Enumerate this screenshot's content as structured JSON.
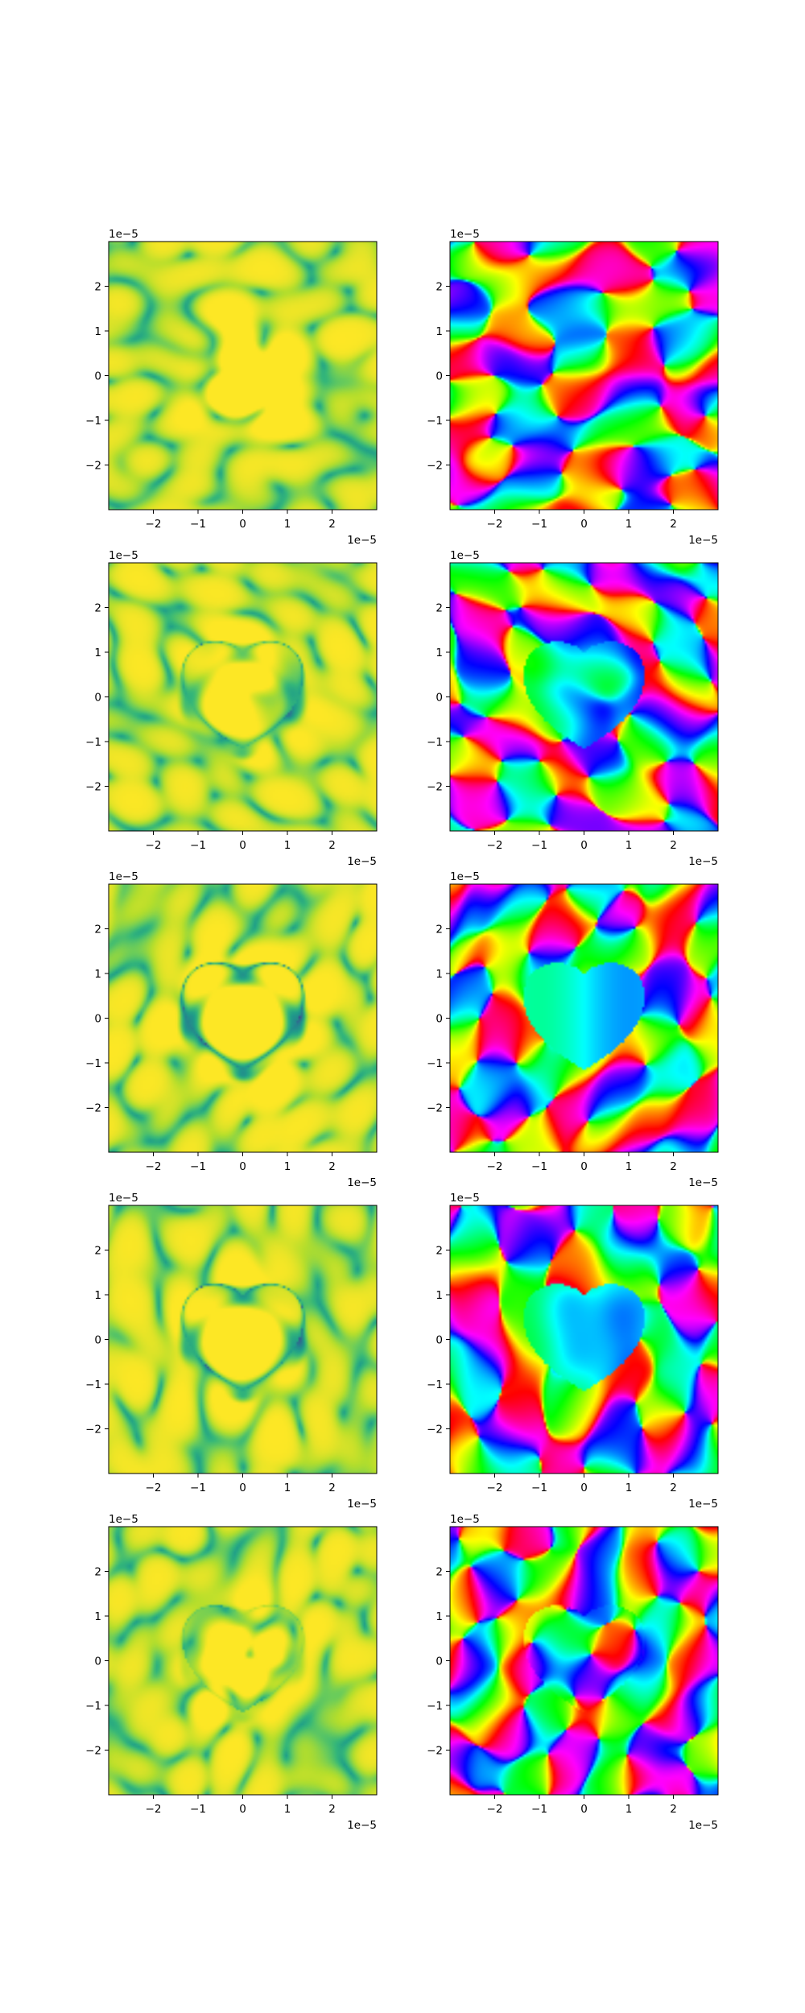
{
  "figure": {
    "background": "#ffffff"
  },
  "chart_data": [
    {
      "type": "heatmap",
      "quantity": "amplitude",
      "colormap": "viridis",
      "xlim": [
        -3e-05,
        3e-05
      ],
      "ylim": [
        -3e-05,
        3e-05
      ],
      "xticks": [
        -2,
        -1,
        0,
        1,
        2
      ],
      "yticks": [
        2,
        1,
        0,
        -1,
        -2
      ],
      "xtick_labels": [
        "−2",
        "−1",
        "0",
        "1",
        "2"
      ],
      "ytick_labels": [
        "2",
        "1",
        "0",
        "−1",
        "−2"
      ],
      "x_offset_text": "1e−5",
      "y_offset_text": "1e−5",
      "grid": false,
      "row": 1,
      "heart_stage": 0.0,
      "seed": 11
    },
    {
      "type": "heatmap",
      "quantity": "phase",
      "colormap": "hsv",
      "xlim": [
        -3e-05,
        3e-05
      ],
      "ylim": [
        -3e-05,
        3e-05
      ],
      "xticks": [
        -2,
        -1,
        0,
        1,
        2
      ],
      "yticks": [
        2,
        1,
        0,
        -1,
        -2
      ],
      "xtick_labels": [
        "−2",
        "−1",
        "0",
        "1",
        "2"
      ],
      "ytick_labels": [
        "2",
        "1",
        "0",
        "−1",
        "−2"
      ],
      "x_offset_text": "1e−5",
      "y_offset_text": "1e−5",
      "grid": false,
      "row": 1,
      "heart_stage": 0.0,
      "seed": 11
    },
    {
      "type": "heatmap",
      "quantity": "amplitude",
      "colormap": "viridis",
      "xlim": [
        -3e-05,
        3e-05
      ],
      "ylim": [
        -3e-05,
        3e-05
      ],
      "xticks": [
        -2,
        -1,
        0,
        1,
        2
      ],
      "yticks": [
        2,
        1,
        0,
        -1,
        -2
      ],
      "xtick_labels": [
        "−2",
        "−1",
        "0",
        "1",
        "2"
      ],
      "ytick_labels": [
        "2",
        "1",
        "0",
        "−1",
        "−2"
      ],
      "x_offset_text": "1e−5",
      "y_offset_text": "1e−5",
      "grid": false,
      "row": 2,
      "heart_stage": 0.6,
      "seed": 23
    },
    {
      "type": "heatmap",
      "quantity": "phase",
      "colormap": "hsv",
      "xlim": [
        -3e-05,
        3e-05
      ],
      "ylim": [
        -3e-05,
        3e-05
      ],
      "xticks": [
        -2,
        -1,
        0,
        1,
        2
      ],
      "yticks": [
        2,
        1,
        0,
        -1,
        -2
      ],
      "xtick_labels": [
        "−2",
        "−1",
        "0",
        "1",
        "2"
      ],
      "ytick_labels": [
        "2",
        "1",
        "0",
        "−1",
        "−2"
      ],
      "x_offset_text": "1e−5",
      "y_offset_text": "1e−5",
      "grid": false,
      "row": 2,
      "heart_stage": 0.6,
      "seed": 23
    },
    {
      "type": "heatmap",
      "quantity": "amplitude",
      "colormap": "viridis",
      "xlim": [
        -3e-05,
        3e-05
      ],
      "ylim": [
        -3e-05,
        3e-05
      ],
      "xticks": [
        -2,
        -1,
        0,
        1,
        2
      ],
      "yticks": [
        2,
        1,
        0,
        -1,
        -2
      ],
      "xtick_labels": [
        "−2",
        "−1",
        "0",
        "1",
        "2"
      ],
      "ytick_labels": [
        "2",
        "1",
        "0",
        "−1",
        "−2"
      ],
      "x_offset_text": "1e−5",
      "y_offset_text": "1e−5",
      "grid": false,
      "row": 3,
      "heart_stage": 1.0,
      "seed": 37
    },
    {
      "type": "heatmap",
      "quantity": "phase",
      "colormap": "hsv",
      "xlim": [
        -3e-05,
        3e-05
      ],
      "ylim": [
        -3e-05,
        3e-05
      ],
      "xticks": [
        -2,
        -1,
        0,
        1,
        2
      ],
      "yticks": [
        2,
        1,
        0,
        -1,
        -2
      ],
      "xtick_labels": [
        "−2",
        "−1",
        "0",
        "1",
        "2"
      ],
      "ytick_labels": [
        "2",
        "1",
        "0",
        "−1",
        "−2"
      ],
      "x_offset_text": "1e−5",
      "y_offset_text": "1e−5",
      "grid": false,
      "row": 3,
      "heart_stage": 1.0,
      "seed": 37
    },
    {
      "type": "heatmap",
      "quantity": "amplitude",
      "colormap": "viridis",
      "xlim": [
        -3e-05,
        3e-05
      ],
      "ylim": [
        -3e-05,
        3e-05
      ],
      "xticks": [
        -2,
        -1,
        0,
        1,
        2
      ],
      "yticks": [
        2,
        1,
        0,
        -1,
        -2
      ],
      "xtick_labels": [
        "−2",
        "−1",
        "0",
        "1",
        "2"
      ],
      "ytick_labels": [
        "2",
        "1",
        "0",
        "−1",
        "−2"
      ],
      "x_offset_text": "1e−5",
      "y_offset_text": "1e−5",
      "grid": false,
      "row": 4,
      "heart_stage": 0.75,
      "seed": 53
    },
    {
      "type": "heatmap",
      "quantity": "phase",
      "colormap": "hsv",
      "xlim": [
        -3e-05,
        3e-05
      ],
      "ylim": [
        -3e-05,
        3e-05
      ],
      "xticks": [
        -2,
        -1,
        0,
        1,
        2
      ],
      "yticks": [
        2,
        1,
        0,
        -1,
        -2
      ],
      "xtick_labels": [
        "−2",
        "−1",
        "0",
        "1",
        "2"
      ],
      "ytick_labels": [
        "2",
        "1",
        "0",
        "−1",
        "−2"
      ],
      "x_offset_text": "1e−5",
      "y_offset_text": "1e−5",
      "grid": false,
      "row": 4,
      "heart_stage": 0.75,
      "seed": 53
    },
    {
      "type": "heatmap",
      "quantity": "amplitude",
      "colormap": "viridis",
      "xlim": [
        -3e-05,
        3e-05
      ],
      "ylim": [
        -3e-05,
        3e-05
      ],
      "xticks": [
        -2,
        -1,
        0,
        1,
        2
      ],
      "yticks": [
        2,
        1,
        0,
        -1,
        -2
      ],
      "xtick_labels": [
        "−2",
        "−1",
        "0",
        "1",
        "2"
      ],
      "ytick_labels": [
        "2",
        "1",
        "0",
        "−1",
        "−2"
      ],
      "x_offset_text": "1e−5",
      "y_offset_text": "1e−5",
      "grid": false,
      "row": 5,
      "heart_stage": 0.25,
      "seed": 71
    },
    {
      "type": "heatmap",
      "quantity": "phase",
      "colormap": "hsv",
      "xlim": [
        -3e-05,
        3e-05
      ],
      "ylim": [
        -3e-05,
        3e-05
      ],
      "xticks": [
        -2,
        -1,
        0,
        1,
        2
      ],
      "yticks": [
        2,
        1,
        0,
        -1,
        -2
      ],
      "xtick_labels": [
        "−2",
        "−1",
        "0",
        "1",
        "2"
      ],
      "ytick_labels": [
        "2",
        "1",
        "0",
        "−1",
        "−2"
      ],
      "x_offset_text": "1e−5",
      "y_offset_text": "1e−5",
      "grid": false,
      "row": 5,
      "heart_stage": 0.25,
      "seed": 71
    }
  ]
}
